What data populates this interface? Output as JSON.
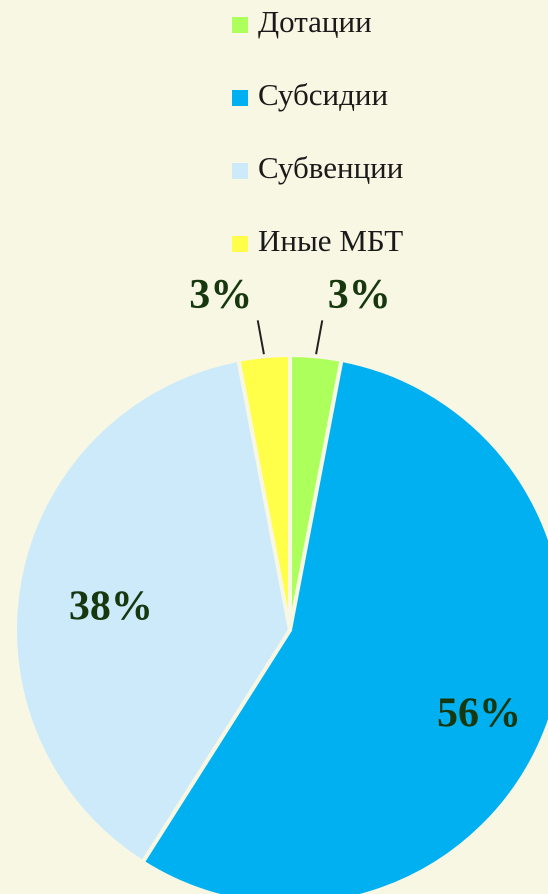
{
  "chart_data": {
    "type": "pie",
    "categories": [
      "Дотации",
      "Субсидии",
      "Субвенции",
      "Иные МБТ"
    ],
    "values": [
      3,
      56,
      38,
      3
    ],
    "value_labels": [
      "3%",
      "56%",
      "38%",
      "3%"
    ],
    "colors": [
      "#adff5c",
      "#00b0f0",
      "#cdeafa",
      "#ffff4a"
    ]
  }
}
